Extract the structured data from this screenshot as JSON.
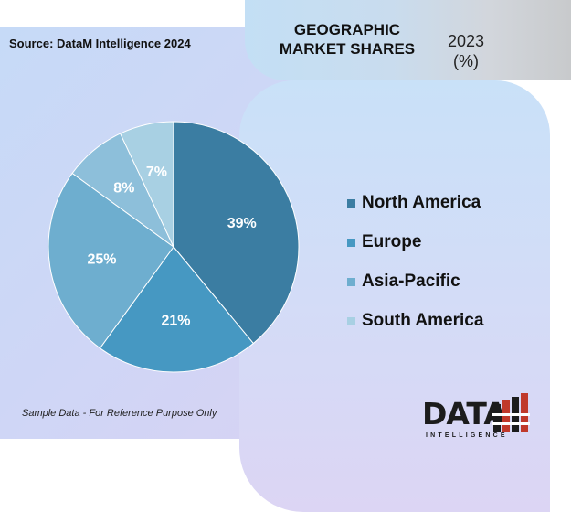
{
  "header": {
    "title": "GEOGRAPHIC MARKET SHARES",
    "year": "2023",
    "unit": "(%)"
  },
  "source": "Source: DataM Intelligence 2024",
  "note": "Sample Data - For Reference Purpose Only",
  "logo": {
    "word": "DATA",
    "sub": "INTELLIGENCE"
  },
  "chart_data": {
    "type": "pie",
    "title": "GEOGRAPHIC MARKET SHARES 2023 (%)",
    "categories": [
      "North America",
      "Europe",
      "Asia-Pacific",
      "South America"
    ],
    "values": [
      39,
      21,
      25,
      8,
      7
    ],
    "labels": [
      "39%",
      "21%",
      "25%",
      "8%",
      "7%"
    ],
    "colors": [
      "#3b7da2",
      "#4698c2",
      "#6eaecf",
      "#8dbfda",
      "#a8d0e3"
    ],
    "legend_colors": [
      "#3b7da2",
      "#4698c2",
      "#6eaecf",
      "#a8d0e3"
    ],
    "legend_position": "right"
  }
}
